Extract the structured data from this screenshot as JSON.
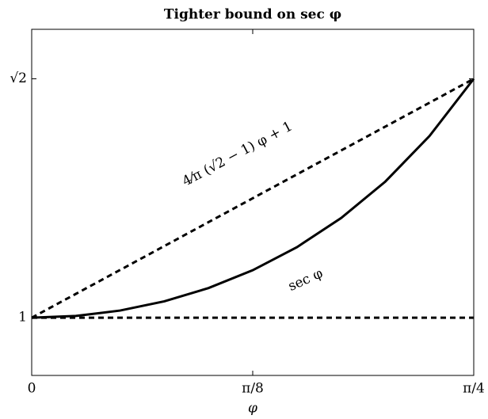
{
  "chart_data": {
    "type": "line",
    "title": "Tighter bound on sec φ",
    "x_label": "φ",
    "annotations": [
      "4⁄π (√2 − 1) φ + 1",
      "sec φ"
    ],
    "x": [
      0,
      0.07854,
      0.15708,
      0.23562,
      0.31416,
      0.3927,
      0.47124,
      0.54978,
      0.62832,
      0.70686,
      0.7854
    ],
    "series": [
      {
        "color": "#000000",
        "style": "solid",
        "values": [
          1,
          1.00309,
          1.01247,
          1.02842,
          1.05146,
          1.08239,
          1.12233,
          1.17283,
          1.23607,
          1.31509,
          1.41421
        ]
      },
      {
        "color": "#000000",
        "style": "dashed",
        "values": [
          1,
          1.04142,
          1.08284,
          1.12426,
          1.16569,
          1.20711,
          1.24853,
          1.28995,
          1.33137,
          1.37279,
          1.41421
        ]
      },
      {
        "color": "#000000",
        "style": "dashed",
        "values": [
          1,
          1,
          1,
          1,
          1,
          1,
          1,
          1,
          1,
          1,
          1
        ]
      }
    ],
    "xlim": [
      0,
      0.7854
    ],
    "ylim": [
      0.9,
      1.5
    ],
    "xticks": [
      0,
      {
        "value": 0.3927,
        "label": "π/8"
      },
      {
        "value": 0.7854,
        "label": "π/4"
      }
    ],
    "yticks": [
      1,
      {
        "value": 1.41421,
        "label": "√2"
      }
    ],
    "grid": false
  }
}
